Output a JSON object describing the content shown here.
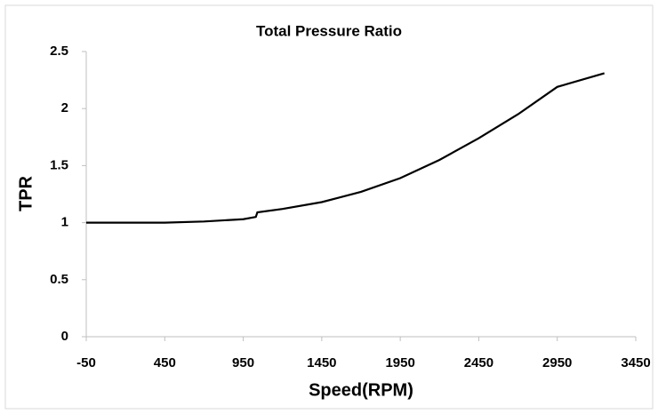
{
  "chart_data": {
    "type": "line",
    "title": "Total Pressure Ratio",
    "x_label": "Speed(RPM)",
    "y_label": "TPR",
    "x": [
      -50,
      200,
      450,
      700,
      950,
      1030,
      1040,
      1200,
      1450,
      1700,
      1950,
      2200,
      2450,
      2700,
      2950,
      3250
    ],
    "series": [
      {
        "name": "TPR",
        "color": "#000000",
        "values": [
          1.0,
          1.0,
          1.0,
          1.01,
          1.03,
          1.05,
          1.09,
          1.12,
          1.18,
          1.27,
          1.39,
          1.55,
          1.74,
          1.95,
          2.19,
          2.31
        ]
      }
    ],
    "xlim": [
      -50,
      3450
    ],
    "xticks": [
      -50,
      450,
      950,
      1450,
      1950,
      2450,
      2950,
      3450
    ],
    "ylim": [
      0,
      2.5
    ],
    "yticks": [
      0,
      0.5,
      1,
      1.5,
      2,
      2.5
    ],
    "grid": false
  }
}
